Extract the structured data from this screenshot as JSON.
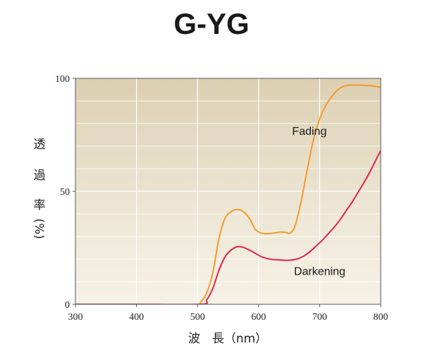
{
  "chart_data": {
    "type": "line",
    "title": "G-YG",
    "xlabel": "波　長（nm）",
    "ylabel_chars": [
      "透",
      "過",
      "率",
      "(%)"
    ],
    "xlim": [
      300,
      800
    ],
    "ylim": [
      0,
      100
    ],
    "x_ticks": [
      300,
      400,
      500,
      600,
      700,
      800
    ],
    "y_ticks": [
      0,
      50,
      100
    ],
    "grid": true,
    "colors": {
      "Fading": "#f39a2a",
      "Darkening": "#e0234c"
    },
    "series": [
      {
        "name": "Fading",
        "x": [
          300,
          400,
          495,
          505,
          515,
          525,
          535,
          545,
          555,
          565,
          575,
          585,
          595,
          605,
          615,
          625,
          635,
          645,
          652,
          660,
          670,
          680,
          690,
          700,
          710,
          720,
          730,
          740,
          750,
          760,
          770,
          780,
          790,
          800
        ],
        "y": [
          0,
          0,
          0,
          1,
          5,
          14,
          29,
          38,
          41,
          42,
          41,
          38,
          33,
          31.5,
          31.2,
          31.5,
          32,
          31.8,
          31.5,
          35,
          46,
          60,
          73,
          82,
          88,
          92,
          95,
          96.5,
          97,
          97,
          97,
          96.8,
          96.5,
          96
        ]
      },
      {
        "name": "Darkening",
        "x": [
          300,
          400,
          505,
          515,
          525,
          535,
          545,
          555,
          565,
          575,
          585,
          595,
          605,
          615,
          630,
          645,
          655,
          665,
          675,
          685,
          695,
          705,
          715,
          725,
          735,
          745,
          755,
          765,
          775,
          785,
          795,
          800
        ],
        "y": [
          0,
          0,
          0,
          2,
          7,
          15,
          21,
          24,
          25.5,
          25.2,
          24,
          22.5,
          21,
          20.2,
          19.7,
          19.5,
          19.6,
          20.2,
          21.5,
          23.5,
          26,
          28.5,
          31.5,
          34.5,
          38,
          42,
          46,
          50.5,
          55,
          60,
          65.5,
          68
        ]
      }
    ],
    "annotations": [
      {
        "text": "Fading",
        "x": 655,
        "y": 75
      },
      {
        "text": "Darkening",
        "x": 658,
        "y": 13
      }
    ]
  }
}
